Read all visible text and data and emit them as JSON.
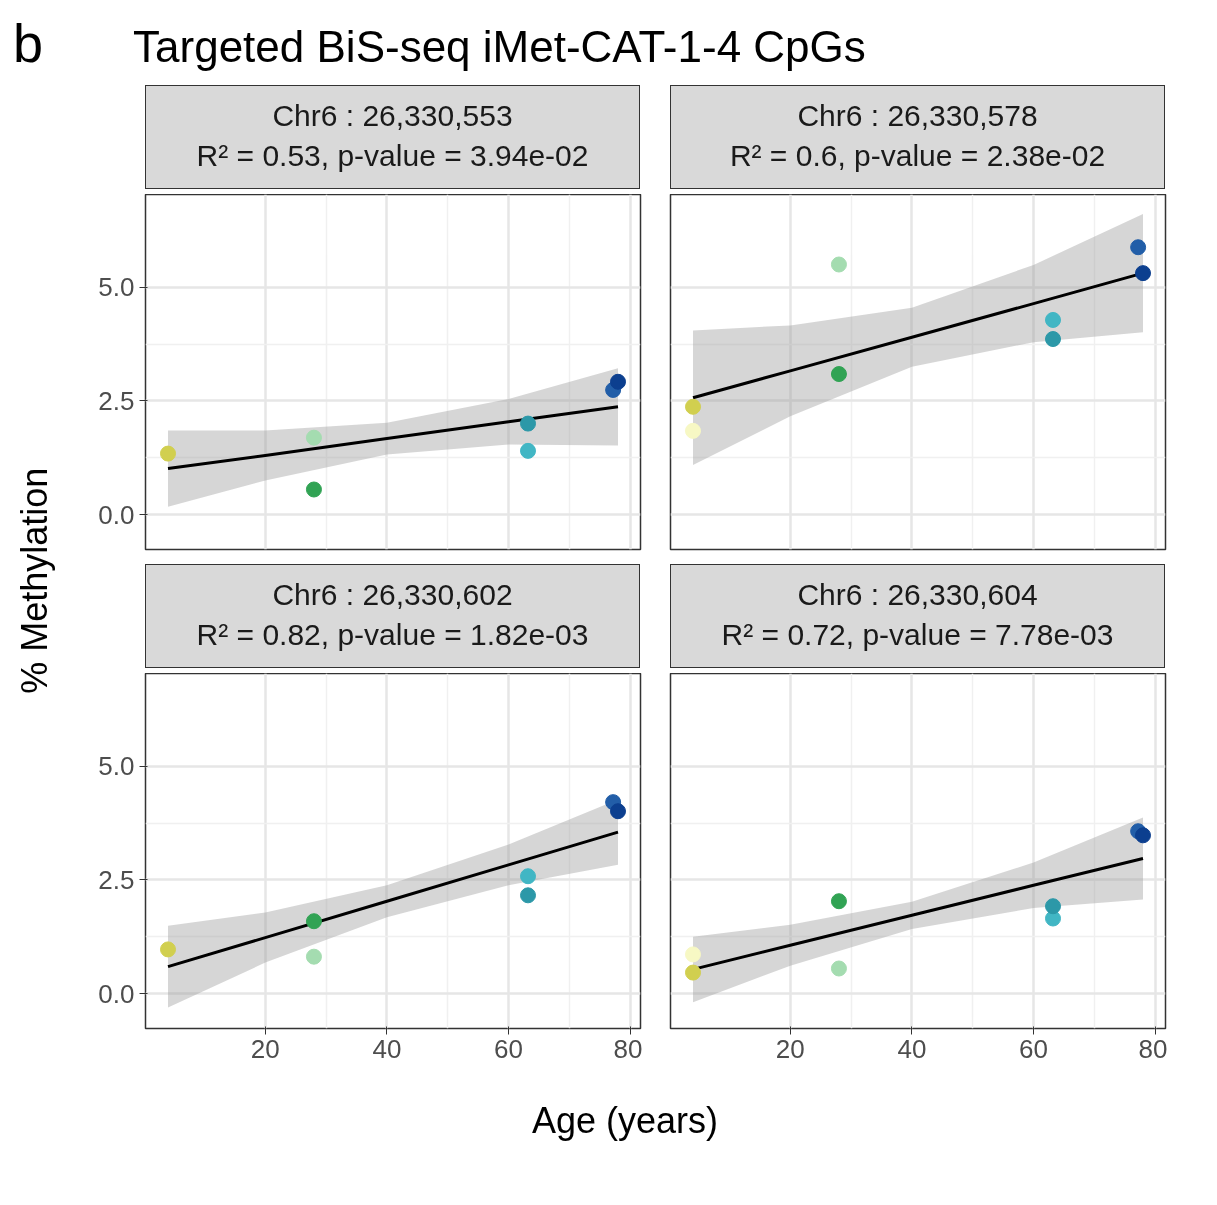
{
  "chart_data": [
    {
      "type": "scatter",
      "title": "Chr6 : 26,330,553\nR² = 0.53, p-value = 3.94e-02",
      "annotations": [
        "b",
        "Targeted BiS-seq iMet-CAT-1-4 CpGs"
      ],
      "ylabel": "% Methylation",
      "xlim": [
        0.3,
        81.7
      ],
      "ylim": [
        -0.77,
        7.04
      ],
      "xticks": [
        20,
        40,
        60,
        80
      ],
      "yticks": [
        {
          "value": 0,
          "label": "0.0"
        },
        {
          "value": 2.5,
          "label": "2.5"
        },
        {
          "value": 5,
          "label": "5.0"
        }
      ],
      "tick_labels": "y",
      "grid": true,
      "marker": "circle",
      "series": [
        {
          "type": "line",
          "marker": "none",
          "color": "#000000",
          "x": [
            4,
            20,
            40,
            60,
            78
          ],
          "values": [
            1.01,
            1.3,
            1.67,
            2.04,
            2.37
          ],
          "lower": [
            0.17,
            0.75,
            1.32,
            1.54,
            1.52
          ],
          "upper": [
            1.85,
            1.85,
            2.02,
            2.54,
            3.22
          ]
        },
        {
          "x": [
            4,
            28,
            28,
            63.2,
            63.2,
            77.2,
            78
          ],
          "values": [
            1.34,
            1.69,
            0.55,
            1.4,
            2.0,
            2.74,
            2.92
          ],
          "colors": [
            "#d1cf4f",
            "#a4dcb0",
            "#31a354",
            "#41b6c4",
            "#2c98a8",
            "#225ea8",
            "#0c3f8f"
          ]
        }
      ]
    },
    {
      "type": "scatter",
      "title": "Chr6 : 26,330,578\nR² = 0.6, p-value = 2.38e-02",
      "xlim": [
        0.3,
        81.7
      ],
      "ylim": [
        -0.77,
        7.04
      ],
      "xticks": [
        20,
        40,
        60,
        80
      ],
      "yticks": [
        0,
        2.5,
        5
      ],
      "tick_labels": false,
      "grid": true,
      "marker": "circle",
      "series": [
        {
          "type": "line",
          "marker": "none",
          "color": "#000000",
          "x": [
            4,
            20,
            40,
            60,
            78
          ],
          "values": [
            2.57,
            3.16,
            3.9,
            4.64,
            5.31
          ],
          "lower": [
            1.09,
            2.16,
            3.25,
            3.79,
            4.01
          ],
          "upper": [
            4.05,
            4.16,
            4.55,
            5.49,
            6.61
          ]
        },
        {
          "x": [
            4,
            4,
            28,
            28,
            63.2,
            63.2,
            77.2,
            78
          ],
          "values": [
            1.84,
            2.37,
            5.5,
            3.09,
            4.28,
            3.86,
            5.88,
            5.31
          ],
          "colors": [
            "#f7f8c4",
            "#d1cf4f",
            "#a4dcb0",
            "#31a354",
            "#41b6c4",
            "#2c98a8",
            "#225ea8",
            "#0c3f8f"
          ]
        }
      ]
    },
    {
      "type": "scatter",
      "title": "Chr6 : 26,330,602\nR² = 0.82, p-value = 1.82e-03",
      "xlabel": "Age (years)",
      "xlim": [
        0.3,
        81.7
      ],
      "ylim": [
        -0.77,
        7.04
      ],
      "xticks": [
        20,
        40,
        60,
        80
      ],
      "yticks": [
        {
          "value": 0,
          "label": "0.0"
        },
        {
          "value": 2.5,
          "label": "2.5"
        },
        {
          "value": 5,
          "label": "5.0"
        }
      ],
      "grid": true,
      "marker": "circle",
      "series": [
        {
          "type": "line",
          "marker": "none",
          "color": "#000000",
          "x": [
            4,
            20,
            40,
            60,
            78
          ],
          "values": [
            0.59,
            1.23,
            2.03,
            2.83,
            3.55
          ],
          "lower": [
            -0.31,
            0.68,
            1.68,
            2.38,
            2.83
          ],
          "upper": [
            1.49,
            1.78,
            2.38,
            3.28,
            4.27
          ]
        },
        {
          "x": [
            4,
            28,
            28,
            63.2,
            63.2,
            77.2,
            78
          ],
          "values": [
            0.97,
            0.81,
            1.59,
            2.58,
            2.16,
            4.21,
            4.01
          ],
          "colors": [
            "#d1cf4f",
            "#a4dcb0",
            "#31a354",
            "#41b6c4",
            "#2c98a8",
            "#225ea8",
            "#0c3f8f"
          ]
        }
      ]
    },
    {
      "type": "scatter",
      "title": "Chr6 : 26,330,604\nR² = 0.72, p-value = 7.78e-03",
      "xlim": [
        0.3,
        81.7
      ],
      "ylim": [
        -0.77,
        7.04
      ],
      "xticks": [
        20,
        40,
        60,
        80
      ],
      "yticks": [
        0,
        2.5,
        5
      ],
      "tick_labels": "x",
      "grid": true,
      "marker": "circle",
      "series": [
        {
          "type": "line",
          "marker": "none",
          "color": "#000000",
          "x": [
            4,
            20,
            40,
            60,
            78
          ],
          "values": [
            0.53,
            1.06,
            1.72,
            2.38,
            2.97
          ],
          "lower": [
            -0.19,
            0.61,
            1.42,
            1.88,
            2.07
          ],
          "upper": [
            1.25,
            1.51,
            2.02,
            2.88,
            3.87
          ]
        },
        {
          "x": [
            4,
            4,
            28,
            28,
            63.2,
            63.2,
            77.2,
            78
          ],
          "values": [
            0.86,
            0.46,
            0.55,
            2.03,
            1.65,
            1.92,
            3.57,
            3.48
          ],
          "colors": [
            "#f7f8c4",
            "#d1cf4f",
            "#a4dcb0",
            "#31a354",
            "#41b6c4",
            "#2c98a8",
            "#225ea8",
            "#0c3f8f"
          ]
        }
      ]
    }
  ]
}
